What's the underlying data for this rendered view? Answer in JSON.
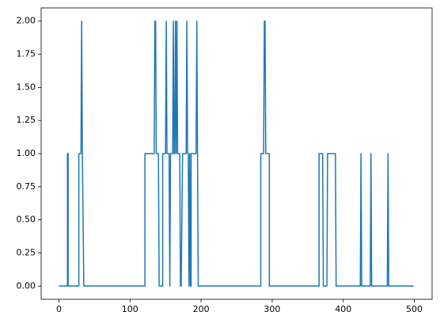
{
  "chart_data": {
    "type": "line",
    "x": [
      0,
      12,
      12,
      13,
      13,
      28,
      28,
      31,
      32,
      33,
      35,
      121,
      121,
      134,
      135,
      136,
      137,
      140,
      141,
      146,
      146,
      150,
      151,
      152,
      155,
      156,
      157,
      160,
      161,
      162,
      163,
      164,
      165,
      166,
      167,
      170,
      171,
      172,
      174,
      179,
      180,
      181,
      182,
      183,
      184,
      185,
      186,
      186,
      193,
      194,
      195,
      196,
      284,
      284,
      288,
      289,
      290,
      291,
      296,
      296,
      366,
      366,
      371,
      372,
      377,
      378,
      389,
      390,
      424,
      425,
      426,
      438,
      439,
      440,
      462,
      463,
      464,
      499
    ],
    "series": [
      {
        "color": "#1f77b4",
        "values": [
          0,
          0,
          1,
          1,
          0,
          0,
          1,
          1,
          2,
          1,
          0,
          0,
          1,
          1,
          2,
          2,
          1,
          1,
          0,
          0,
          1,
          1,
          2,
          1,
          1,
          0,
          1,
          1,
          2,
          1,
          1,
          2,
          1,
          2,
          1,
          1,
          0,
          0,
          1,
          1,
          2,
          1,
          1,
          0,
          1,
          0,
          0,
          1,
          1,
          2,
          1,
          0,
          0,
          1,
          1,
          2,
          2,
          1,
          1,
          0,
          0,
          1,
          1,
          0,
          0,
          1,
          1,
          0,
          0,
          1,
          0,
          0,
          1,
          0,
          0,
          1,
          0,
          0
        ]
      }
    ],
    "xlim": [
      -25,
      525
    ],
    "ylim": [
      -0.1,
      2.1
    ],
    "xticks": [
      0,
      100,
      200,
      300,
      400,
      500
    ],
    "yticks": [
      {
        "value": 0,
        "label": "0.00"
      },
      {
        "value": 0.25,
        "label": "0.25"
      },
      {
        "value": 0.5,
        "label": "0.50"
      },
      {
        "value": 0.75,
        "label": "0.75"
      },
      {
        "value": 1,
        "label": "1.00"
      },
      {
        "value": 1.25,
        "label": "1.25"
      },
      {
        "value": 1.5,
        "label": "1.50"
      },
      {
        "value": 1.75,
        "label": "1.75"
      },
      {
        "value": 2,
        "label": "2.00"
      }
    ]
  }
}
